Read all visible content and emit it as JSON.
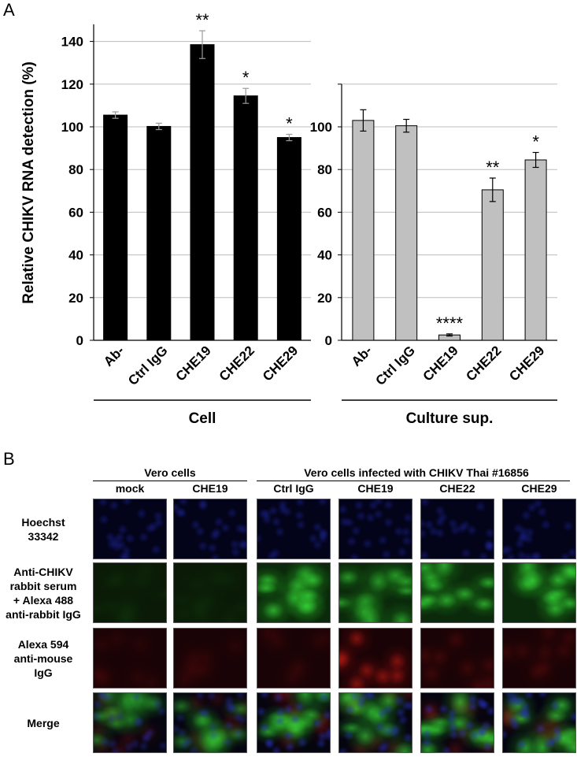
{
  "panel_a_letter": "A",
  "panel_b_letter": "B",
  "y_axis_label": "Relative CHIKV RNA detection (%)",
  "chart_data": [
    {
      "type": "bar",
      "categories": [
        "Ab-",
        "Ctrl IgG",
        "CHE19",
        "CHE22",
        "CHE29"
      ],
      "values": [
        105.5,
        100.2,
        138.5,
        114.5,
        95.0
      ],
      "errors": [
        1.5,
        1.5,
        6.5,
        3.5,
        1.5
      ],
      "significance": [
        "",
        "",
        "**",
        "*",
        "*"
      ],
      "ylim": [
        0,
        150
      ],
      "yticks": [
        0,
        20,
        40,
        60,
        80,
        100,
        120,
        140
      ],
      "ylabel": "Relative CHIKV RNA detection (%)",
      "xlabel": "Cell",
      "grid": true,
      "bar_color": "#000000"
    },
    {
      "type": "bar",
      "categories": [
        "Ab-",
        "Ctrl IgG",
        "CHE19",
        "CHE22",
        "CHE29"
      ],
      "values": [
        103.0,
        100.5,
        2.5,
        70.5,
        84.5
      ],
      "errors": [
        5.0,
        3.0,
        0.5,
        5.5,
        3.5
      ],
      "significance": [
        "",
        "",
        "****",
        "**",
        "*"
      ],
      "ylim": [
        0,
        120
      ],
      "yticks": [
        0,
        20,
        40,
        60,
        80,
        100
      ],
      "xlabel": "Culture sup.",
      "grid": true,
      "bar_color": "#c0c0c0"
    }
  ],
  "panel_b": {
    "group1_label": "Vero cells",
    "group2_label": "Vero cells infected with CHIKV Thai #16856",
    "columns": [
      "mock",
      "CHE19",
      "Ctrl IgG",
      "CHE19",
      "CHE22",
      "CHE29"
    ],
    "rows": [
      {
        "label_lines": [
          "Hoechst",
          "33342"
        ],
        "channel": "blue",
        "intensities": [
          0.6,
          0.6,
          0.6,
          0.6,
          0.6,
          0.6
        ]
      },
      {
        "label_lines": [
          "Anti-CHIKV",
          "rabbit serum",
          "+ Alexa 488",
          "anti-rabbit IgG"
        ],
        "channel": "green",
        "intensities": [
          0.05,
          0.05,
          0.9,
          0.75,
          0.85,
          0.9
        ]
      },
      {
        "label_lines": [
          "Alexa 594",
          "anti-mouse",
          "IgG"
        ],
        "channel": "red",
        "intensities": [
          0.12,
          0.12,
          0.1,
          0.75,
          0.25,
          0.2
        ]
      },
      {
        "label_lines": [
          "Merge"
        ],
        "channel": "merge",
        "intensities": [
          0.6,
          0.6,
          0.85,
          0.8,
          0.85,
          0.85
        ]
      }
    ]
  }
}
